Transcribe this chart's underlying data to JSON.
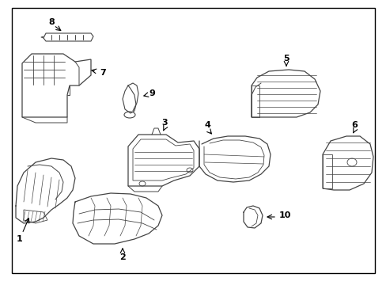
{
  "background_color": "#ffffff",
  "line_color": "#444444",
  "label_color": "#000000",
  "figsize": [
    4.89,
    3.6
  ],
  "dpi": 100,
  "border": [
    15,
    10,
    474,
    345
  ]
}
